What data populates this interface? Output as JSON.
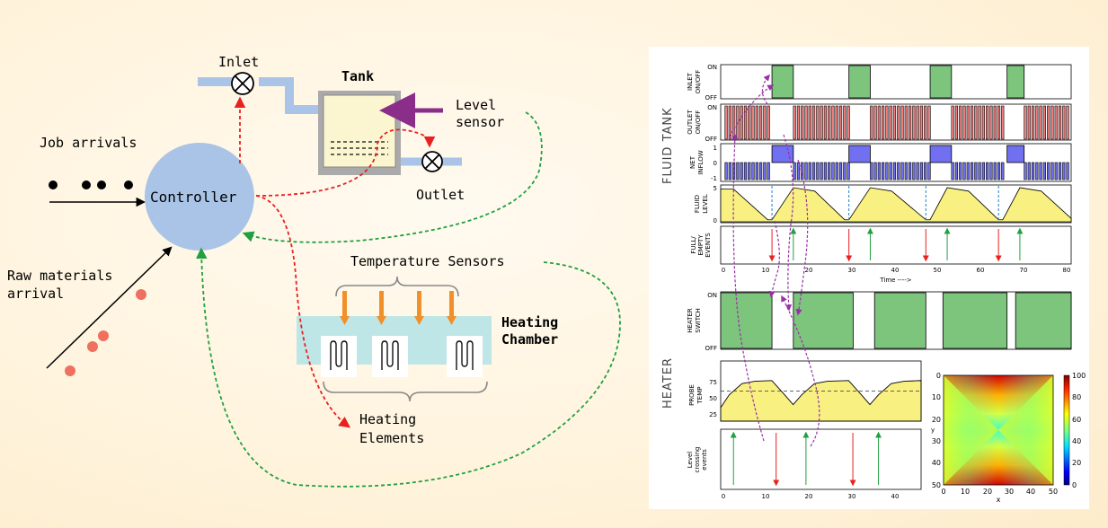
{
  "diagram": {
    "labels": {
      "inlet": "Inlet",
      "tank": "Tank",
      "level_sensor_1": "Level",
      "level_sensor_2": "sensor",
      "outlet": "Outlet",
      "job_arrivals": "Job arrivals",
      "controller": "Controller",
      "raw_materials_1": "Raw materials",
      "raw_materials_2": "arrival",
      "temperature_sensors": "Temperature Sensors",
      "heating_chamber_1": "Heating",
      "heating_chamber_2": "Chamber",
      "heating_elements_1": "Heating",
      "heating_elements_2": "Elements"
    },
    "colors": {
      "pipe": "#a9c4e6",
      "controller": "#a9c4e6",
      "tank_fill": "#fbf6d0",
      "chamber": "#bfe6e6",
      "sensor": "#f0902a",
      "level_sensor": "#8a2e8a",
      "red_dash": "#e82020",
      "green_dash": "#20a040",
      "raw_dot": "#f07060"
    }
  },
  "plots": {
    "group_labels": {
      "fluid_tank": "FLUID TANK",
      "heater": "HEATER"
    },
    "panels": {
      "inlet": {
        "ylabel_1": "INLET",
        "ylabel_2": "ON/OFF",
        "on": "ON",
        "off": "OFF"
      },
      "outlet": {
        "ylabel_1": "OUTLET",
        "ylabel_2": "ON/OFF",
        "on": "ON",
        "off": "OFF"
      },
      "net_inflow": {
        "ylabel_1": "NET",
        "ylabel_2": "INFLOW",
        "ticks": [
          "1",
          "0",
          "-1"
        ]
      },
      "fluid_level": {
        "ylabel_1": "FLUID",
        "ylabel_2": "LEVEL",
        "ticks": [
          "5",
          "0"
        ]
      },
      "events": {
        "ylabel_1": "FULL/",
        "ylabel_2": "EMPTY",
        "ylabel_3": "EVENTS",
        "xticks": [
          "0",
          "10",
          "20",
          "30",
          "40",
          "50",
          "60",
          "70",
          "80"
        ],
        "xlabel": "Time ---->"
      },
      "heater_switch": {
        "ylabel_1": "HEATER",
        "ylabel_2": "SWITCH",
        "on": "ON",
        "off": "OFF"
      },
      "probe_temp": {
        "ylabel_1": "PROBE",
        "ylabel_2": "TEMP",
        "ticks": [
          "75",
          "50",
          "25"
        ]
      },
      "crossing": {
        "ylabel_1": "Level",
        "ylabel_2": "crossing",
        "ylabel_3": "events",
        "xticks": [
          "0",
          "10",
          "20",
          "30",
          "40"
        ]
      },
      "heatmap": {
        "yticks": [
          "0",
          "10",
          "20",
          "30",
          "40",
          "50"
        ],
        "xticks": [
          "0",
          "10",
          "20",
          "30",
          "40",
          "50"
        ],
        "xlabel": "x",
        "ylabel": "y",
        "cbar_ticks": [
          "100",
          "80",
          "60",
          "40",
          "20",
          "0"
        ]
      }
    }
  },
  "chart_data": [
    {
      "type": "line",
      "name": "fluid_tank_timeseries",
      "xlim": [
        0,
        80
      ],
      "inlet_on_intervals": [
        [
          12,
          17
        ],
        [
          30,
          35
        ],
        [
          49,
          54
        ],
        [
          67,
          71
        ]
      ],
      "heater_on_intervals": [
        [
          0,
          12
        ],
        [
          17,
          31
        ],
        [
          36,
          48
        ],
        [
          52,
          67
        ],
        [
          69,
          82
        ]
      ],
      "fluid_level": {
        "x": [
          0,
          3,
          11,
          12,
          17,
          22,
          29,
          30,
          35,
          40,
          48,
          49,
          53,
          58,
          65,
          66,
          70,
          75,
          82
        ],
        "y": [
          4.8,
          4.8,
          0.3,
          0.3,
          5,
          4.5,
          0.3,
          0.3,
          5,
          4.5,
          0.3,
          0.3,
          5,
          4.5,
          0.3,
          0.3,
          5,
          4.5,
          0.5
        ]
      },
      "empty_events_x": [
        12,
        30,
        48,
        65
      ],
      "full_events_x": [
        17,
        35,
        53,
        70
      ]
    },
    {
      "type": "line",
      "name": "probe_temperature",
      "xlim": [
        0,
        47
      ],
      "yticks": [
        25,
        50,
        75
      ],
      "threshold": 50,
      "x": [
        0,
        2,
        5,
        8,
        12,
        15,
        17,
        19,
        22,
        25,
        30,
        33,
        35,
        37,
        40,
        43,
        47
      ],
      "y": [
        28,
        45,
        60,
        63,
        64,
        45,
        32,
        45,
        60,
        63,
        64,
        45,
        32,
        45,
        60,
        63,
        64
      ],
      "up_crossings_x": [
        3,
        20,
        37
      ],
      "down_crossings_x": [
        13,
        31
      ]
    },
    {
      "type": "heatmap",
      "name": "temperature_field",
      "xlim": [
        0,
        50
      ],
      "ylim": [
        0,
        50
      ],
      "color_range": [
        0,
        100
      ],
      "description_values": {
        "top_edge": 100,
        "bottom_edge": 100,
        "left_edge": 60,
        "right_edge": 60,
        "center": 45
      }
    }
  ]
}
